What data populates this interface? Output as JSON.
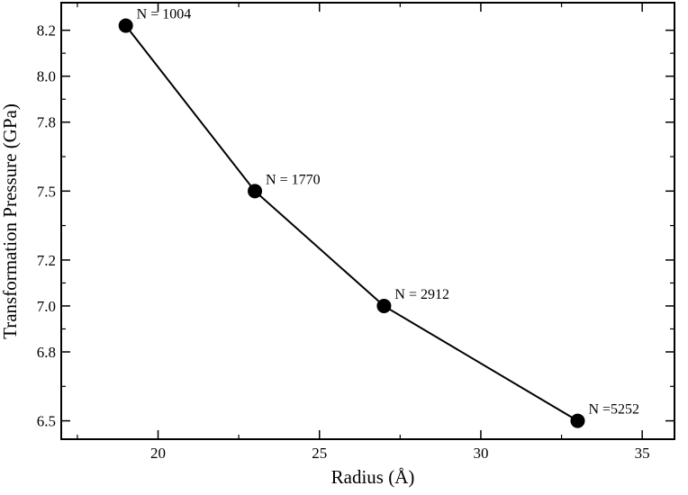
{
  "chart_data": {
    "type": "line",
    "title": "",
    "xlabel": "Radius (Å)",
    "ylabel": "Transformation Pressure (GPa)",
    "xlim": [
      17,
      36
    ],
    "ylim": [
      6.42,
      8.32
    ],
    "x_ticks": [
      {
        "value": 20,
        "label": "20"
      },
      {
        "value": 25,
        "label": "25"
      },
      {
        "value": 30,
        "label": "30"
      },
      {
        "value": 35,
        "label": "35"
      }
    ],
    "y_ticks": [
      {
        "value": 6.5,
        "label": "6.5"
      },
      {
        "value": 6.8,
        "label": "6.8"
      },
      {
        "value": 7.0,
        "label": "7.0"
      },
      {
        "value": 7.2,
        "label": "7.2"
      },
      {
        "value": 7.5,
        "label": "7.5"
      },
      {
        "value": 7.8,
        "label": "7.8"
      },
      {
        "value": 8.0,
        "label": "8.0"
      },
      {
        "value": 8.2,
        "label": "8.2"
      }
    ],
    "grid": false,
    "legend": "none",
    "series": [
      {
        "color": "#000000",
        "points": [
          {
            "x": 19,
            "y": 8.22,
            "label": "N = 1004"
          },
          {
            "x": 23,
            "y": 7.5,
            "label": "N = 1770"
          },
          {
            "x": 27,
            "y": 7.0,
            "label": "N = 2912"
          },
          {
            "x": 33,
            "y": 6.5,
            "label": "N =5252"
          }
        ]
      }
    ]
  }
}
